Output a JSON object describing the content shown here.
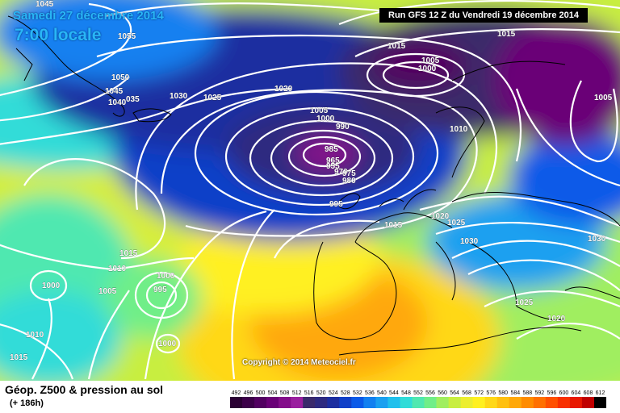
{
  "header": {
    "date": "Samedi 27 décembre 2014",
    "time": "7:00 locale",
    "run": "Run GFS 12 Z du Vendredi 19 décembre 2014"
  },
  "copyright": "Copyright © 2014 Meteociel.fr",
  "footer": {
    "title": "Géop. Z500 & pression au sol",
    "subtitle": "(+ 186h)"
  },
  "legend": {
    "ticks": [
      "492",
      "496",
      "500",
      "504",
      "508",
      "512",
      "516",
      "520",
      "524",
      "528",
      "532",
      "536",
      "540",
      "544",
      "548",
      "552",
      "556",
      "560",
      "564",
      "568",
      "572",
      "576",
      "580",
      "584",
      "588",
      "592",
      "596",
      "600",
      "604",
      "608",
      "612"
    ],
    "colors": [
      "#2a0033",
      "#3c0049",
      "#520061",
      "#6a0077",
      "#840d8a",
      "#9a1f9f",
      "#3a2a6b",
      "#2d2a80",
      "#1c2ea0",
      "#1040c8",
      "#0a5ae8",
      "#1280f0",
      "#1aa0f0",
      "#20c0ec",
      "#30dcd8",
      "#50e8b0",
      "#70ee88",
      "#a0ee60",
      "#c8ee40",
      "#ecee30",
      "#fff020",
      "#ffd818",
      "#ffc010",
      "#ffa808",
      "#ff8c00",
      "#ff7000",
      "#ff5000",
      "#f83000",
      "#e81800",
      "#c00000",
      "#000000"
    ]
  },
  "isobars": [
    {
      "text": "1045",
      "pos": "top-left"
    },
    {
      "text": "1055",
      "pos": "greenland"
    },
    {
      "text": "1050",
      "pos": "greenland"
    },
    {
      "text": "1045",
      "pos": "greenland"
    },
    {
      "text": "1040",
      "pos": "greenland"
    },
    {
      "text": "035",
      "pos": "greenland"
    },
    {
      "text": "1030",
      "pos": "iceland"
    },
    {
      "text": "1025",
      "pos": "iceland"
    },
    {
      "text": "1020",
      "pos": "north-atlantic"
    },
    {
      "text": "1005",
      "pos": "low"
    },
    {
      "text": "1000",
      "pos": "low"
    },
    {
      "text": "990",
      "pos": "low"
    },
    {
      "text": "985",
      "pos": "low"
    },
    {
      "text": "965",
      "pos": "low-center"
    },
    {
      "text": "955",
      "pos": "low-center"
    },
    {
      "text": "970",
      "pos": "low-center"
    },
    {
      "text": "975",
      "pos": "low-center"
    },
    {
      "text": "980",
      "pos": "low-center"
    },
    {
      "text": "995",
      "pos": "low"
    },
    {
      "text": "1015",
      "pos": "scandinavia"
    },
    {
      "text": "1005",
      "pos": "scandinavia"
    },
    {
      "text": "1000",
      "pos": "scandinavia"
    },
    {
      "text": "1015",
      "pos": "russia"
    },
    {
      "text": "1005",
      "pos": "russia"
    },
    {
      "text": "1010",
      "pos": "baltic"
    },
    {
      "text": "1020",
      "pos": "central-europe"
    },
    {
      "text": "1025",
      "pos": "central-europe"
    },
    {
      "text": "1030",
      "pos": "central-europe"
    },
    {
      "text": "1030",
      "pos": "east-europe"
    },
    {
      "text": "1015",
      "pos": "biscay"
    },
    {
      "text": "1015",
      "pos": "atlantic"
    },
    {
      "text": "1010",
      "pos": "atlantic"
    },
    {
      "text": "1000",
      "pos": "azores"
    },
    {
      "text": "995",
      "pos": "azores"
    },
    {
      "text": "1005",
      "pos": "atlantic"
    },
    {
      "text": "1000",
      "pos": "west-atlantic"
    },
    {
      "text": "1010",
      "pos": "west-atlantic"
    },
    {
      "text": "1015",
      "pos": "bottom-left"
    },
    {
      "text": "1000",
      "pos": "azores-south"
    },
    {
      "text": "1025",
      "pos": "balkans"
    },
    {
      "text": "1020",
      "pos": "turkey"
    }
  ]
}
